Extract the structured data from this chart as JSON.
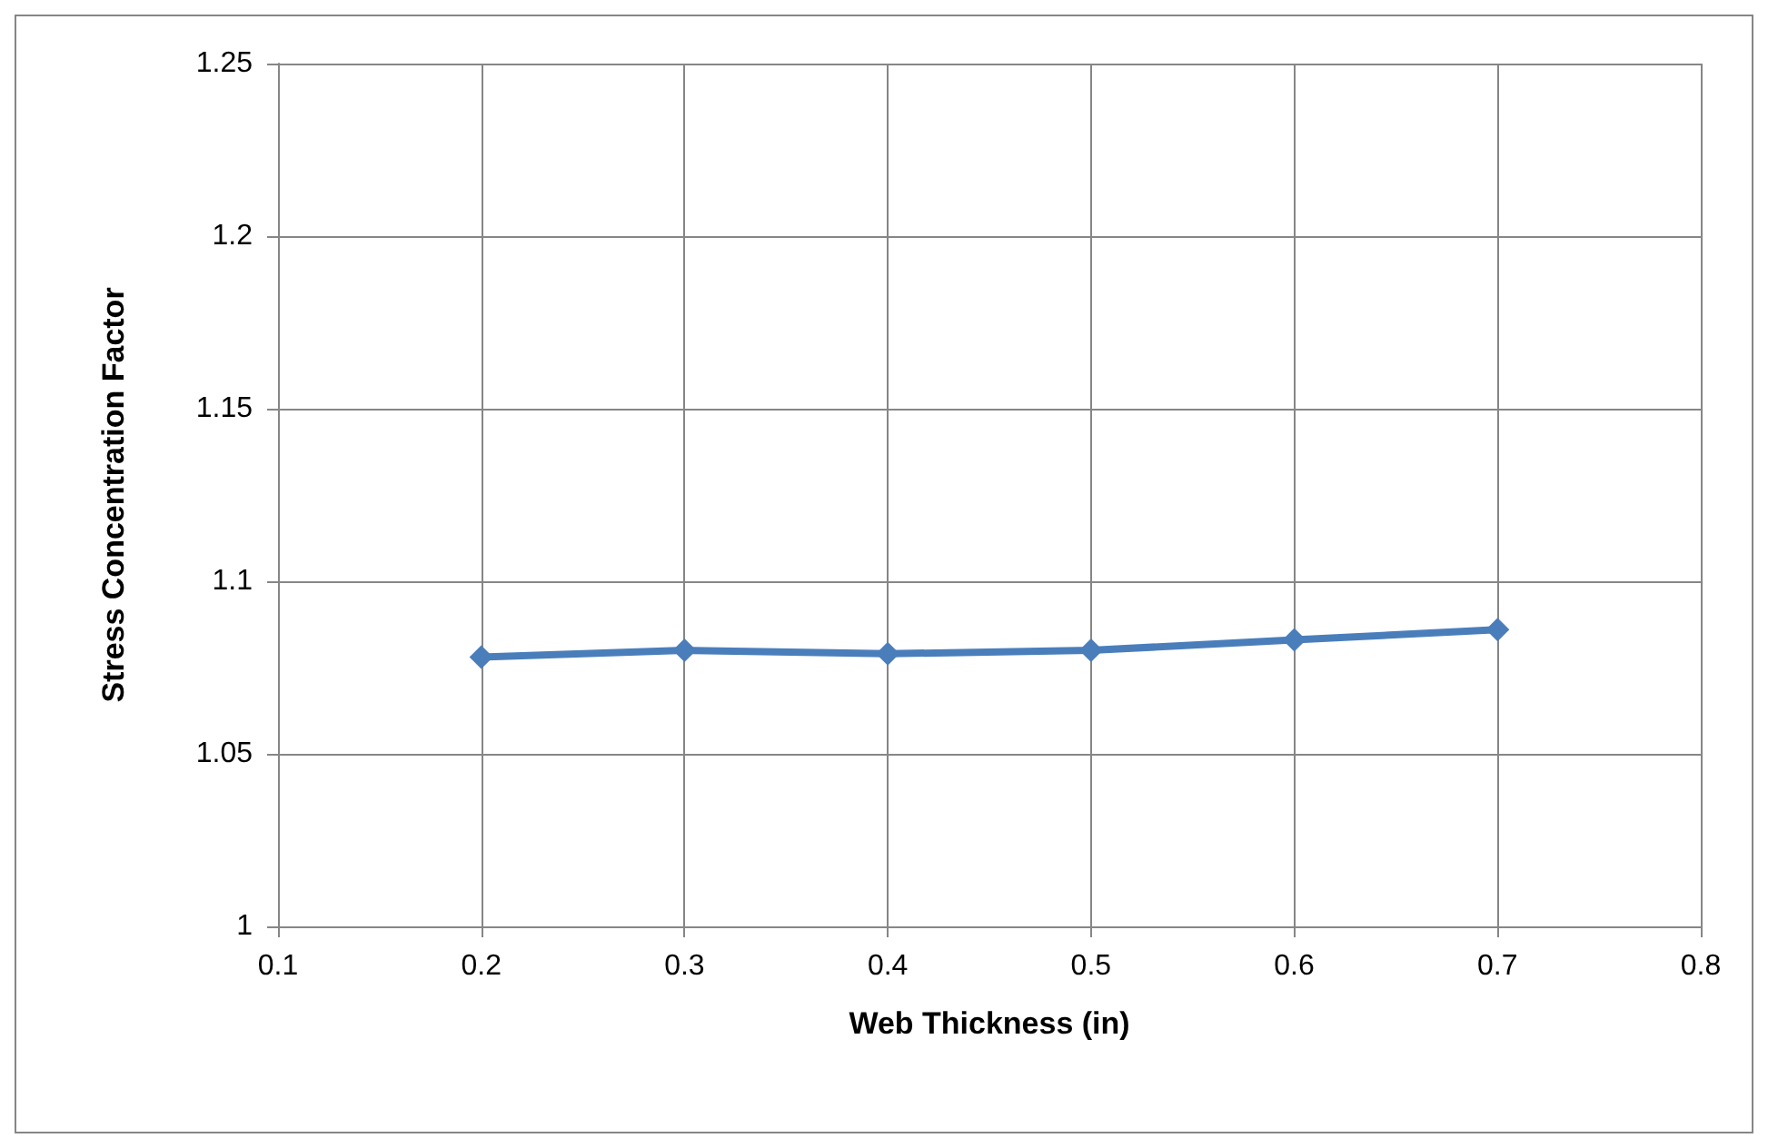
{
  "chart_data": {
    "type": "line",
    "xlabel": "Web Thickness (in)",
    "ylabel": "Stress Concentration Factor",
    "x": [
      0.2,
      0.3,
      0.4,
      0.5,
      0.6,
      0.7
    ],
    "series": [
      {
        "color": "#4a7ebb",
        "values": [
          1.078,
          1.08,
          1.079,
          1.08,
          1.083,
          1.086
        ]
      }
    ],
    "xlim": [
      0.1,
      0.8
    ],
    "xticks": [
      0.1,
      0.2,
      0.3,
      0.4,
      0.5,
      0.6,
      0.7,
      0.8
    ],
    "ylim": [
      1,
      1.25
    ],
    "yticks": [
      1,
      1.05,
      1.1,
      1.15,
      1.2,
      1.25
    ],
    "grid": true,
    "marker": "diamond",
    "line_style": "solid"
  }
}
